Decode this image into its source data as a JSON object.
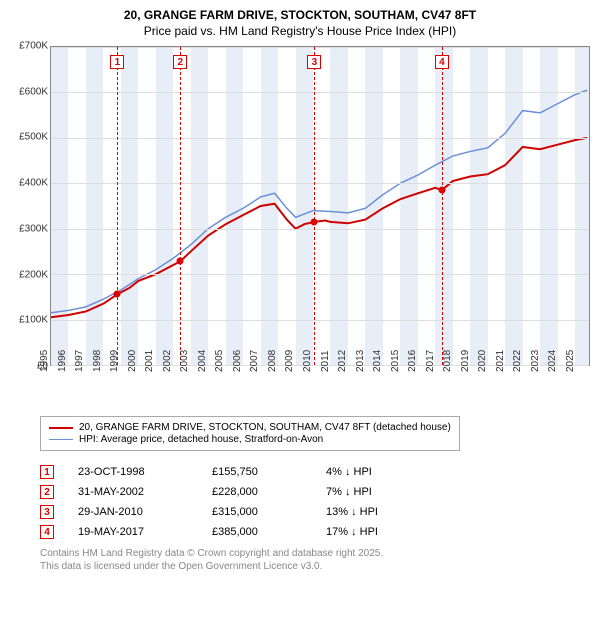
{
  "title": "20, GRANGE FARM DRIVE, STOCKTON, SOUTHAM, CV47 8FT",
  "subtitle": "Price paid vs. HM Land Registry's House Price Index (HPI)",
  "chart": {
    "type": "line",
    "ylim": [
      0,
      700000
    ],
    "ytick_step": 100000,
    "yticks": [
      "£0",
      "£100K",
      "£200K",
      "£300K",
      "£400K",
      "£500K",
      "£600K",
      "£700K"
    ],
    "xlim": [
      1995,
      2025.8
    ],
    "xticks": [
      1995,
      1996,
      1997,
      1998,
      1999,
      2000,
      2001,
      2002,
      2003,
      2004,
      2005,
      2006,
      2007,
      2008,
      2009,
      2010,
      2011,
      2012,
      2013,
      2014,
      2015,
      2016,
      2017,
      2018,
      2019,
      2020,
      2021,
      2022,
      2023,
      2024,
      2025
    ],
    "background_color": "#ffffff",
    "grid_color": "#dddddd",
    "shade_color": "#e8eef7",
    "shade_bands": [
      [
        1995,
        1996
      ],
      [
        1997,
        1998
      ],
      [
        1999,
        2000
      ],
      [
        2001,
        2002
      ],
      [
        2003,
        2004
      ],
      [
        2005,
        2006
      ],
      [
        2007,
        2008
      ],
      [
        2009,
        2010
      ],
      [
        2011,
        2012
      ],
      [
        2013,
        2014
      ],
      [
        2015,
        2016
      ],
      [
        2017,
        2018
      ],
      [
        2019,
        2020
      ],
      [
        2021,
        2022
      ],
      [
        2023,
        2024
      ],
      [
        2025,
        2025.8
      ]
    ],
    "series": [
      {
        "name": "property",
        "label": "20, GRANGE FARM DRIVE, STOCKTON, SOUTHAM, CV47 8FT (detached house)",
        "color": "#d00000",
        "line_width": 2,
        "points": [
          [
            1995,
            105000
          ],
          [
            1996,
            110000
          ],
          [
            1997,
            118000
          ],
          [
            1998,
            135000
          ],
          [
            1998.8,
            155750
          ],
          [
            1999.5,
            170000
          ],
          [
            2000,
            185000
          ],
          [
            2001,
            200000
          ],
          [
            2002,
            220000
          ],
          [
            2002.4,
            228000
          ],
          [
            2003,
            250000
          ],
          [
            2004,
            285000
          ],
          [
            2005,
            310000
          ],
          [
            2006,
            330000
          ],
          [
            2007,
            350000
          ],
          [
            2007.8,
            355000
          ],
          [
            2008.5,
            320000
          ],
          [
            2009,
            300000
          ],
          [
            2009.5,
            310000
          ],
          [
            2010.08,
            315000
          ],
          [
            2010.7,
            318000
          ],
          [
            2011,
            315000
          ],
          [
            2012,
            312000
          ],
          [
            2013,
            320000
          ],
          [
            2014,
            345000
          ],
          [
            2015,
            365000
          ],
          [
            2016,
            378000
          ],
          [
            2017,
            390000
          ],
          [
            2017.38,
            385000
          ],
          [
            2018,
            405000
          ],
          [
            2019,
            415000
          ],
          [
            2020,
            420000
          ],
          [
            2021,
            440000
          ],
          [
            2022,
            480000
          ],
          [
            2023,
            475000
          ],
          [
            2024,
            485000
          ],
          [
            2025,
            495000
          ],
          [
            2025.7,
            500000
          ]
        ]
      },
      {
        "name": "hpi",
        "label": "HPI: Average price, detached house, Stratford-on-Avon",
        "color": "#6a8fd8",
        "line_width": 1.5,
        "points": [
          [
            1995,
            115000
          ],
          [
            1996,
            120000
          ],
          [
            1997,
            128000
          ],
          [
            1998,
            145000
          ],
          [
            1999,
            165000
          ],
          [
            2000,
            190000
          ],
          [
            2001,
            210000
          ],
          [
            2002,
            235000
          ],
          [
            2003,
            265000
          ],
          [
            2004,
            300000
          ],
          [
            2005,
            325000
          ],
          [
            2006,
            345000
          ],
          [
            2007,
            370000
          ],
          [
            2007.8,
            378000
          ],
          [
            2008.5,
            345000
          ],
          [
            2009,
            325000
          ],
          [
            2010,
            340000
          ],
          [
            2011,
            338000
          ],
          [
            2012,
            335000
          ],
          [
            2013,
            345000
          ],
          [
            2014,
            375000
          ],
          [
            2015,
            400000
          ],
          [
            2016,
            418000
          ],
          [
            2017,
            440000
          ],
          [
            2018,
            460000
          ],
          [
            2019,
            470000
          ],
          [
            2020,
            478000
          ],
          [
            2021,
            510000
          ],
          [
            2022,
            560000
          ],
          [
            2023,
            555000
          ],
          [
            2024,
            575000
          ],
          [
            2025,
            595000
          ],
          [
            2025.7,
            605000
          ]
        ]
      }
    ],
    "markers": [
      {
        "n": "1",
        "x": 1998.8,
        "y": 155750
      },
      {
        "n": "2",
        "x": 2002.4,
        "y": 228000
      },
      {
        "n": "3",
        "x": 2010.08,
        "y": 315000
      },
      {
        "n": "4",
        "x": 2017.38,
        "y": 385000
      }
    ]
  },
  "legend": {
    "rows": [
      {
        "color": "#d00000",
        "width": 2,
        "label": "20, GRANGE FARM DRIVE, STOCKTON, SOUTHAM, CV47 8FT (detached house)"
      },
      {
        "color": "#6a8fd8",
        "width": 1.5,
        "label": "HPI: Average price, detached house, Stratford-on-Avon"
      }
    ]
  },
  "transactions": [
    {
      "n": "1",
      "date": "23-OCT-1998",
      "price": "£155,750",
      "pct": "4% ↓ HPI"
    },
    {
      "n": "2",
      "date": "31-MAY-2002",
      "price": "£228,000",
      "pct": "7% ↓ HPI"
    },
    {
      "n": "3",
      "date": "29-JAN-2010",
      "price": "£315,000",
      "pct": "13% ↓ HPI"
    },
    {
      "n": "4",
      "date": "19-MAY-2017",
      "price": "£385,000",
      "pct": "17% ↓ HPI"
    }
  ],
  "footer": {
    "line1": "Contains HM Land Registry data © Crown copyright and database right 2025.",
    "line2": "This data is licensed under the Open Government Licence v3.0."
  }
}
